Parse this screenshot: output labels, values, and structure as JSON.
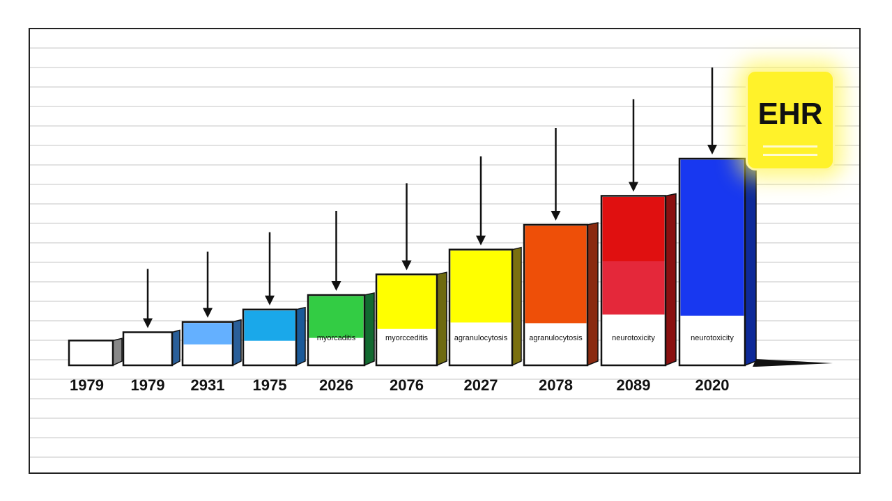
{
  "badge": {
    "label": "EHR",
    "color": "#fff22a"
  },
  "chart_data": {
    "type": "bar",
    "style": "3d-bars-with-arrows",
    "categories": [
      "1979",
      "1979",
      "2931",
      "1975",
      "2026",
      "2076",
      "2027",
      "2078",
      "2089",
      "2020"
    ],
    "values": [
      12,
      16,
      21,
      27,
      34,
      44,
      56,
      68,
      82,
      100
    ],
    "value_unit": "relative height (% of tallest bar, no y-axis shown)",
    "bar_labels": [
      "",
      "",
      "",
      "",
      "myorcaditis",
      "myorcceditis",
      "agranulocytosis",
      "agranulocytosis",
      "neurotoxicity",
      "neurotoxicity"
    ],
    "colors": [
      "#ffffff",
      "#ffffff",
      "#64b0ff",
      "#1aa8ea",
      "#33cc44",
      "#ffff00",
      "#ffff00",
      "#ee4f08",
      "#e01010",
      "#1838f0"
    ],
    "side_colors": [
      "#888888",
      "#2a5f99",
      "#2a5f99",
      "#1a5a99",
      "#126a30",
      "#6e6a10",
      "#7a7010",
      "#8a2a10",
      "#8a1010",
      "#0e2a99"
    ],
    "fill_fraction": [
      0,
      0,
      0.52,
      0.56,
      0.61,
      0.6,
      0.63,
      0.7,
      0.7,
      0.76
    ],
    "grid": true,
    "arrows": true,
    "legend": "none",
    "title": "",
    "xlabel": "",
    "ylabel": ""
  }
}
